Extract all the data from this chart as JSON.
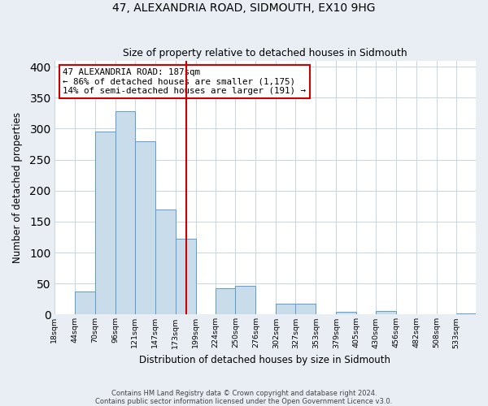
{
  "title": "47, ALEXANDRIA ROAD, SIDMOUTH, EX10 9HG",
  "subtitle": "Size of property relative to detached houses in Sidmouth",
  "xlabel": "Distribution of detached houses by size in Sidmouth",
  "ylabel": "Number of detached properties",
  "bin_labels": [
    "18sqm",
    "44sqm",
    "70sqm",
    "96sqm",
    "121sqm",
    "147sqm",
    "173sqm",
    "199sqm",
    "224sqm",
    "250sqm",
    "276sqm",
    "302sqm",
    "327sqm",
    "353sqm",
    "379sqm",
    "405sqm",
    "430sqm",
    "456sqm",
    "482sqm",
    "508sqm",
    "533sqm"
  ],
  "bin_edges": [
    18,
    44,
    70,
    96,
    121,
    147,
    173,
    199,
    224,
    250,
    276,
    302,
    327,
    353,
    379,
    405,
    430,
    456,
    482,
    508,
    533
  ],
  "bar_heights": [
    0,
    37,
    296,
    328,
    280,
    170,
    123,
    0,
    43,
    46,
    0,
    17,
    17,
    0,
    5,
    0,
    6,
    0,
    0,
    0,
    2
  ],
  "bar_color": "#c9dcea",
  "bar_edge_color": "#5b9bd5",
  "vline_x": 187,
  "vline_color": "#cc0000",
  "annotation_line1": "47 ALEXANDRIA ROAD: 187sqm",
  "annotation_line2": "← 86% of detached houses are smaller (1,175)",
  "annotation_line3": "14% of semi-detached houses are larger (191) →",
  "annotation_box_color": "#cc0000",
  "ylim": [
    0,
    410
  ],
  "yticks": [
    0,
    50,
    100,
    150,
    200,
    250,
    300,
    350,
    400
  ],
  "footer_line1": "Contains HM Land Registry data © Crown copyright and database right 2024.",
  "footer_line2": "Contains public sector information licensed under the Open Government Licence v3.0.",
  "bg_color": "#e8eef4",
  "plot_bg_color": "#ffffff",
  "grid_color": "#c8d4e0"
}
